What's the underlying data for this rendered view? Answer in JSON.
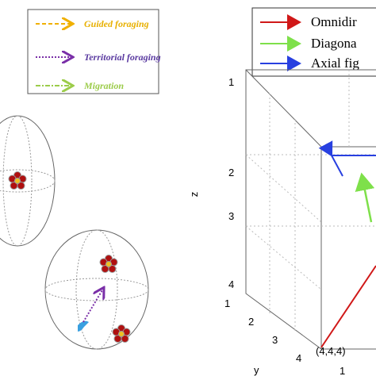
{
  "left_legend": {
    "items": [
      "Guided foraging",
      "Territorial foraging",
      "Migration"
    ]
  },
  "right_legend": {
    "items": [
      "Omnidir",
      "Diagona",
      "Axial fig"
    ]
  },
  "axes": {
    "z_label": "z",
    "z_ticks": [
      "1",
      "2",
      "3",
      "4"
    ],
    "y_label": "y",
    "y_ticks": [
      "1",
      "2",
      "3",
      "4"
    ],
    "corner_label": "(4,4,4)",
    "x_tick": "1"
  }
}
